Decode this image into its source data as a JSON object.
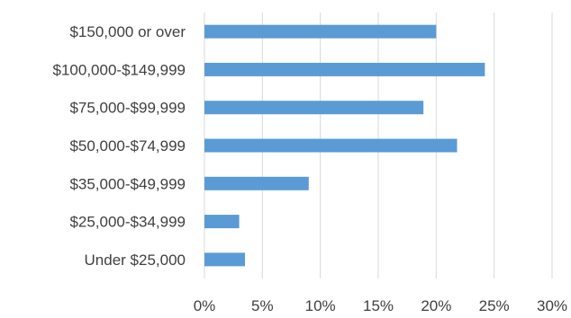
{
  "chart_data": {
    "type": "bar",
    "orientation": "horizontal",
    "categories": [
      "$150,000 or over",
      "$100,000-$149,999",
      "$75,000-$99,999",
      "$50,000-$74,999",
      "$35,000-$49,999",
      "$25,000-$34,999",
      "Under $25,000"
    ],
    "values": [
      20,
      24.2,
      18.9,
      21.8,
      9,
      3,
      3.5
    ],
    "x_ticks": [
      "0%",
      "5%",
      "10%",
      "15%",
      "20%",
      "25%",
      "30%"
    ],
    "xlim": [
      0,
      30
    ],
    "title": "",
    "xlabel": "",
    "ylabel": "",
    "grid": "vertical",
    "legend": "none",
    "colors": {
      "bar": "#5b9bd5",
      "grid": "#d9d9d9",
      "text": "#404040"
    }
  }
}
